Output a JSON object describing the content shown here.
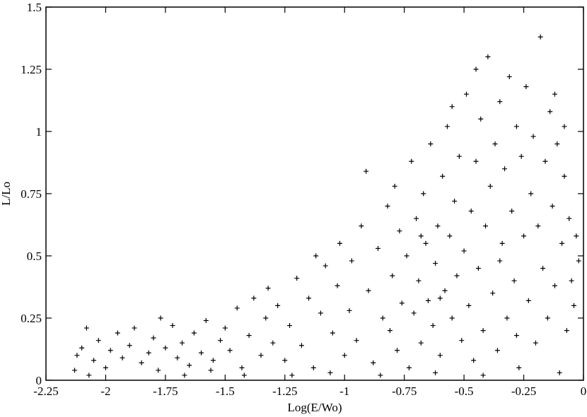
{
  "chart_data": {
    "type": "scatter",
    "x_label": "Log(E/Wo)",
    "y_label": "L/Lo",
    "color": "#000000",
    "xlim": [
      -2.25,
      0
    ],
    "ylim": [
      0,
      1.5
    ],
    "xticks": [
      -2.25,
      -2,
      -1.75,
      -1.5,
      -1.25,
      -1,
      -0.75,
      -0.5,
      -0.25,
      0
    ],
    "yticks": [
      0,
      0.25,
      0.5,
      0.75,
      1,
      1.25,
      1.5
    ],
    "x": [
      -2.12,
      -2.1,
      -2.08,
      -2.05,
      -2.03,
      -2.0,
      -1.98,
      -1.95,
      -1.93,
      -1.9,
      -2.13,
      -2.07,
      -1.88,
      -1.85,
      -1.82,
      -1.8,
      -1.78,
      -1.75,
      -1.72,
      -1.7,
      -1.68,
      -1.65,
      -1.63,
      -1.6,
      -1.77,
      -1.67,
      -1.58,
      -1.55,
      -1.52,
      -1.5,
      -1.48,
      -1.45,
      -1.43,
      -1.4,
      -1.38,
      -1.35,
      -1.33,
      -1.3,
      -1.32,
      -1.42,
      -1.56,
      -1.28,
      -1.25,
      -1.23,
      -1.2,
      -1.18,
      -1.15,
      -1.13,
      -1.1,
      -1.08,
      -1.05,
      -1.03,
      -1.0,
      -1.02,
      -1.12,
      -1.22,
      -1.06,
      -0.98,
      -0.97,
      -0.95,
      -0.93,
      -0.9,
      -0.88,
      -0.86,
      -0.84,
      -0.82,
      -0.8,
      -0.78,
      -0.77,
      -0.76,
      -0.91,
      -0.85,
      -0.79,
      -0.81,
      -0.74,
      -0.73,
      -0.72,
      -0.71,
      -0.7,
      -0.69,
      -0.68,
      -0.67,
      -0.66,
      -0.65,
      -0.64,
      -0.63,
      -0.62,
      -0.61,
      -0.6,
      -0.59,
      -0.58,
      -0.57,
      -0.56,
      -0.55,
      -0.54,
      -0.53,
      -0.52,
      -0.51,
      -0.5,
      -0.62,
      -0.55,
      -0.68,
      -0.6,
      -0.49,
      -0.48,
      -0.47,
      -0.46,
      -0.45,
      -0.44,
      -0.43,
      -0.42,
      -0.41,
      -0.4,
      -0.39,
      -0.38,
      -0.37,
      -0.36,
      -0.35,
      -0.34,
      -0.33,
      -0.32,
      -0.31,
      -0.3,
      -0.29,
      -0.28,
      -0.27,
      -0.26,
      -0.25,
      -0.45,
      -0.42,
      -0.35,
      -0.28,
      -0.24,
      -0.23,
      -0.22,
      -0.21,
      -0.2,
      -0.19,
      -0.18,
      -0.17,
      -0.16,
      -0.15,
      -0.14,
      -0.13,
      -0.12,
      -0.11,
      -0.1,
      -0.09,
      -0.08,
      -0.07,
      -0.06,
      -0.05,
      -0.04,
      -0.03,
      -0.02,
      -0.12,
      -0.08
    ],
    "values": [
      0.1,
      0.13,
      0.21,
      0.08,
      0.16,
      0.05,
      0.12,
      0.19,
      0.09,
      0.14,
      0.04,
      0.02,
      0.21,
      0.07,
      0.11,
      0.17,
      0.04,
      0.13,
      0.22,
      0.09,
      0.15,
      0.06,
      0.19,
      0.11,
      0.25,
      0.02,
      0.24,
      0.08,
      0.16,
      0.21,
      0.12,
      0.29,
      0.05,
      0.18,
      0.33,
      0.1,
      0.25,
      0.15,
      0.37,
      0.02,
      0.04,
      0.3,
      0.08,
      0.22,
      0.41,
      0.14,
      0.33,
      0.05,
      0.27,
      0.46,
      0.19,
      0.38,
      0.1,
      0.55,
      0.5,
      0.02,
      0.03,
      0.28,
      0.48,
      0.16,
      0.62,
      0.36,
      0.07,
      0.53,
      0.25,
      0.7,
      0.42,
      0.12,
      0.6,
      0.31,
      0.84,
      0.02,
      0.78,
      0.2,
      0.5,
      0.05,
      0.88,
      0.27,
      0.65,
      0.4,
      0.15,
      0.75,
      0.55,
      0.32,
      0.95,
      0.22,
      0.47,
      0.62,
      0.1,
      0.82,
      0.36,
      1.02,
      0.58,
      0.25,
      0.72,
      0.42,
      0.9,
      0.16,
      0.52,
      0.03,
      1.1,
      0.58,
      0.33,
      1.15,
      0.3,
      0.68,
      0.08,
      0.88,
      0.45,
      1.05,
      0.2,
      0.62,
      1.3,
      0.78,
      0.35,
      0.95,
      0.12,
      1.12,
      0.55,
      0.85,
      0.25,
      1.22,
      0.68,
      0.4,
      1.02,
      0.05,
      0.9,
      0.58,
      1.25,
      0.02,
      0.48,
      0.18,
      1.18,
      0.32,
      0.75,
      0.98,
      0.15,
      0.62,
      1.38,
      0.45,
      0.88,
      0.25,
      1.08,
      0.7,
      0.38,
      0.95,
      0.03,
      0.55,
      0.82,
      0.2,
      0.65,
      0.4,
      0.3,
      0.58,
      0.48,
      1.15,
      1.02
    ]
  }
}
